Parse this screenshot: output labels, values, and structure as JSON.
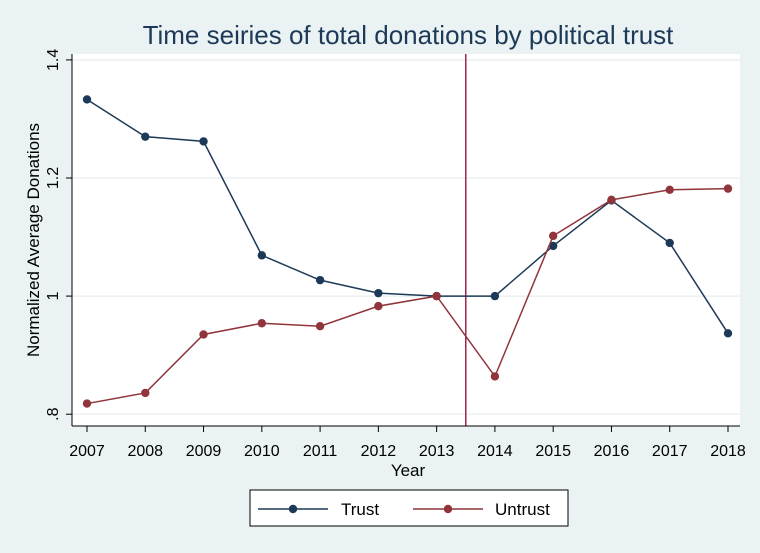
{
  "chart_data": {
    "type": "line",
    "title": "Time seiries of total donations by political trust",
    "xlabel": "Year",
    "ylabel": "Normalized Average Donations",
    "x": [
      2007,
      2008,
      2009,
      2010,
      2011,
      2012,
      2013,
      2014,
      2015,
      2016,
      2017,
      2018
    ],
    "xticks": [
      "2007",
      "2008",
      "2009",
      "2010",
      "2011",
      "2012",
      "2013",
      "2014",
      "2015",
      "2016",
      "2017",
      "2018"
    ],
    "xlim": [
      2007,
      2018
    ],
    "ylim": [
      0.78,
      1.41
    ],
    "yticks": [
      0.8,
      1.0,
      1.2,
      1.4
    ],
    "ytick_labels": [
      ".8",
      "1",
      "1.2",
      "1.4"
    ],
    "grid": true,
    "vline": 2013.5,
    "vline_color": "#9b2748",
    "legend_position": "bottom",
    "series": [
      {
        "name": "Trust",
        "color": "#1c3a57",
        "values": [
          1.333,
          1.27,
          1.262,
          1.069,
          1.027,
          1.005,
          1.0,
          1.0,
          1.085,
          1.162,
          1.09,
          0.937
        ]
      },
      {
        "name": "Untrust",
        "color": "#90353b",
        "values": [
          0.818,
          0.836,
          0.935,
          0.954,
          0.949,
          0.983,
          1.0,
          0.864,
          1.102,
          1.163,
          1.18,
          1.182
        ]
      }
    ]
  }
}
